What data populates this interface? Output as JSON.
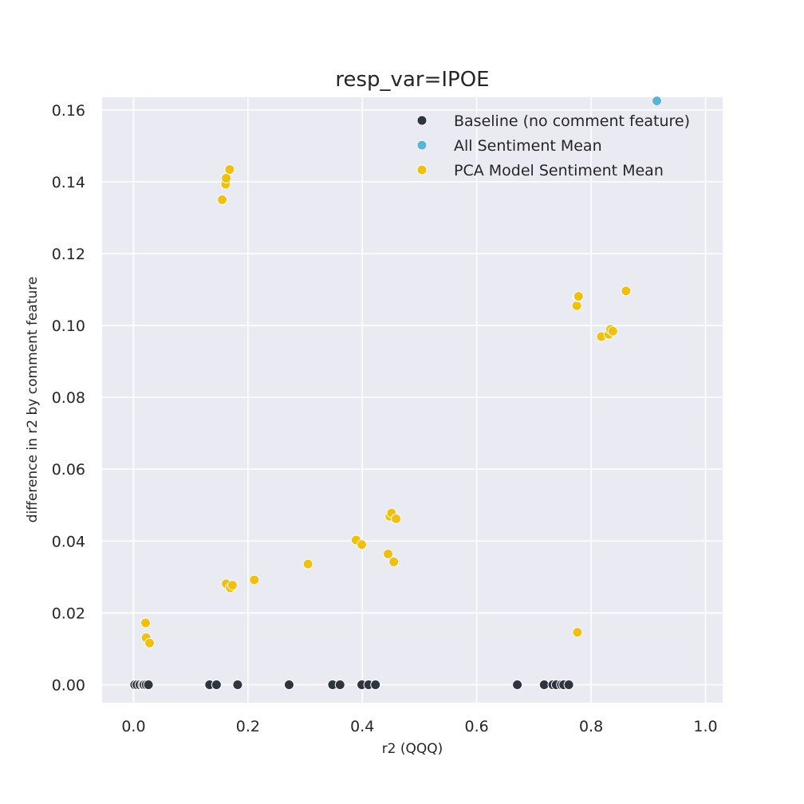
{
  "chart_data": {
    "type": "scatter",
    "title": "resp_var=IPOE",
    "xlabel": "r2 (QQQ)",
    "ylabel": "difference in r2 by comment feature",
    "xlim": [
      -0.055,
      1.03
    ],
    "ylim": [
      -0.005,
      0.1635
    ],
    "x_ticks": [
      0.0,
      0.2,
      0.4,
      0.6,
      0.8,
      1.0
    ],
    "x_tick_labels": [
      "0.0",
      "0.2",
      "0.4",
      "0.6",
      "0.8",
      "1.0"
    ],
    "y_ticks": [
      0.0,
      0.02,
      0.04,
      0.06,
      0.08,
      0.1,
      0.12,
      0.14,
      0.16
    ],
    "y_tick_labels": [
      "0.00",
      "0.02",
      "0.04",
      "0.06",
      "0.08",
      "0.10",
      "0.12",
      "0.14",
      "0.16"
    ],
    "grid": true,
    "legend_position": "top-right",
    "background_color": "#eaeaf2",
    "series": [
      {
        "name": "Baseline (no comment feature)",
        "color": "#2e3440",
        "x": [
          0.002,
          0.006,
          0.011,
          0.016,
          0.018,
          0.022,
          0.026,
          0.133,
          0.145,
          0.182,
          0.272,
          0.348,
          0.361,
          0.399,
          0.411,
          0.423,
          0.671,
          0.718,
          0.733,
          0.739,
          0.748,
          0.752,
          0.761
        ],
        "y": [
          0,
          0,
          0,
          0,
          0,
          0,
          0,
          0,
          0,
          0,
          0,
          0,
          0,
          0,
          0,
          0,
          0,
          0,
          0,
          0,
          0,
          0,
          0
        ]
      },
      {
        "name": "All Sentiment Mean",
        "color": "#5ab4d6",
        "x": [
          0.915
        ],
        "y": [
          0.1625
        ]
      },
      {
        "name": "PCA Model Sentiment Mean",
        "color": "#f0c010",
        "x": [
          0.155,
          0.161,
          0.162,
          0.168,
          0.021,
          0.022,
          0.028,
          0.162,
          0.169,
          0.173,
          0.211,
          0.305,
          0.389,
          0.399,
          0.445,
          0.448,
          0.451,
          0.455,
          0.459,
          0.775,
          0.777,
          0.778,
          0.818,
          0.831,
          0.834,
          0.838,
          0.861,
          0.776
        ],
        "y": [
          0.135,
          0.1393,
          0.141,
          0.1434,
          0.0172,
          0.0131,
          0.0116,
          0.0281,
          0.027,
          0.0277,
          0.0292,
          0.0336,
          0.0403,
          0.039,
          0.0364,
          0.0469,
          0.0478,
          0.0342,
          0.0462,
          0.1055,
          0.1079,
          0.1081,
          0.0969,
          0.0975,
          0.0989,
          0.0984,
          0.1096,
          0.0146
        ]
      }
    ]
  }
}
